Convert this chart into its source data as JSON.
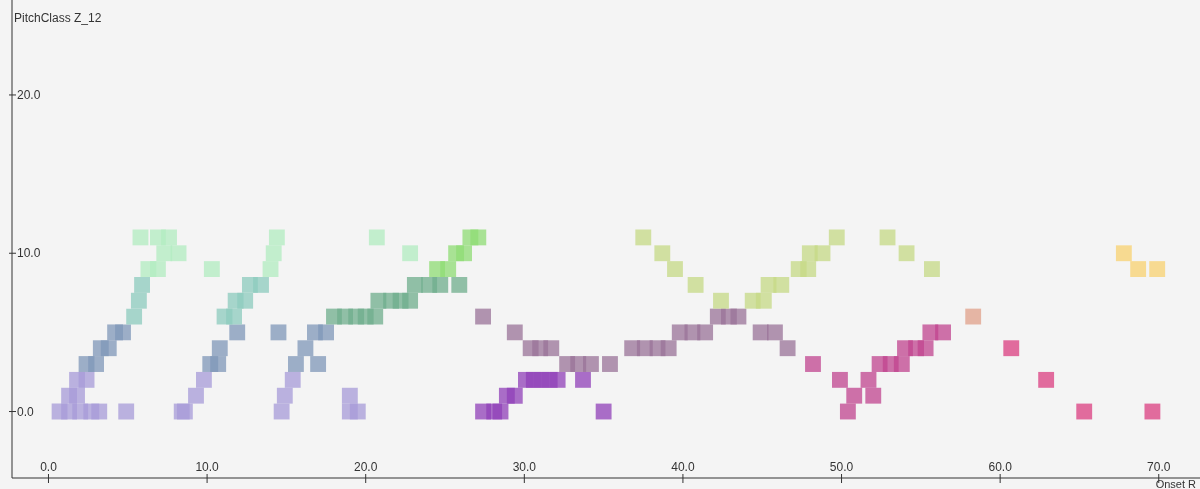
{
  "chart_data": {
    "type": "scatter",
    "xlabel": "Onset R",
    "ylabel": "PitchClass Z_12",
    "marker": "square",
    "grid": false,
    "xlim": [
      -2.3,
      72.6
    ],
    "ylim": [
      -4.2,
      26
    ],
    "xticks": [
      {
        "value": 0,
        "label": "0.0"
      },
      {
        "value": 10,
        "label": "10.0"
      },
      {
        "value": 20,
        "label": "20.0"
      },
      {
        "value": 30,
        "label": "30.0"
      },
      {
        "value": 40,
        "label": "40.0"
      },
      {
        "value": 50,
        "label": "50.0"
      },
      {
        "value": 60,
        "label": "60.0"
      },
      {
        "value": 70,
        "label": "70.0"
      }
    ],
    "yticks": [
      {
        "value": 0,
        "label": "0.0"
      },
      {
        "value": 10,
        "label": "10.0"
      },
      {
        "value": 20,
        "label": "20.0"
      }
    ],
    "series": [
      {
        "color": "#a79bd8",
        "x": [
          0.7,
          1.3,
          2.0,
          2.7,
          3.2,
          4.9,
          8.4,
          8.6,
          14.7,
          19.0,
          19.5,
          1.3,
          1.8,
          9.3,
          14.9,
          19.0,
          1.8,
          2.4,
          9.8,
          15.4
        ],
        "values": [
          0,
          0,
          0,
          0,
          0,
          0,
          0,
          0,
          0,
          0,
          0,
          1,
          1,
          1,
          1,
          1,
          2,
          2,
          2,
          2
        ]
      },
      {
        "color": "#7f97b8",
        "x": [
          2.4,
          3.0,
          10.2,
          10.7,
          15.6,
          17.0,
          3.3,
          3.8,
          10.8,
          16.2,
          4.2,
          4.7,
          11.9,
          14.5,
          16.8,
          17.5
        ],
        "values": [
          3,
          3,
          3,
          3,
          3,
          3,
          4,
          4,
          4,
          4,
          5,
          5,
          5,
          5,
          5,
          5
        ]
      },
      {
        "color": "#8ccbbd",
        "x": [
          5.4,
          11.1,
          11.7,
          5.7,
          11.8,
          12.4,
          5.9,
          12.7,
          13.4
        ],
        "values": [
          6,
          6,
          6,
          7,
          7,
          7,
          8,
          8,
          8
        ]
      },
      {
        "color": "#b2ecc0",
        "x": [
          6.3,
          6.9,
          10.3,
          14.0,
          7.3,
          8.2,
          14.2,
          22.8,
          5.8,
          6.9,
          7.6,
          14.4,
          20.7
        ],
        "values": [
          9,
          9,
          9,
          9,
          10,
          10,
          10,
          10,
          11,
          11,
          11,
          11,
          11
        ]
      },
      {
        "color": "#6fae8c",
        "x": [
          18.0,
          18.7,
          19.4,
          20.0,
          20.6,
          20.8,
          21.6,
          22.2,
          22.8,
          23.1,
          24.0,
          24.7,
          25.9
        ],
        "values": [
          6,
          6,
          6,
          6,
          6,
          7,
          7,
          7,
          7,
          8,
          8,
          8,
          8
        ]
      },
      {
        "color": "#8fdc74",
        "x": [
          24.5,
          25.2,
          25.7,
          26.2,
          26.6,
          27.1
        ],
        "values": [
          9,
          9,
          10,
          10,
          11,
          11
        ]
      },
      {
        "color": "#9040b8",
        "x": [
          27.4,
          28.1,
          28.5,
          35.0,
          28.9,
          29.4,
          30.1,
          30.6,
          31.1,
          31.6,
          32.1,
          33.7
        ],
        "values": [
          0,
          0,
          0,
          0,
          1,
          1,
          2,
          2,
          2,
          2,
          2,
          2
        ]
      },
      {
        "color": "#9a7398",
        "x": [
          32.7,
          33.4,
          34.2,
          35.4,
          30.4,
          31.0,
          31.7,
          36.8,
          37.6,
          38.4,
          39.1,
          46.6,
          29.4,
          39.8,
          40.6,
          41.4,
          44.9,
          45.8,
          27.4,
          42.2,
          42.9,
          43.5
        ],
        "values": [
          3,
          3,
          3,
          3,
          4,
          4,
          4,
          4,
          4,
          4,
          4,
          4,
          5,
          5,
          5,
          5,
          5,
          5,
          6,
          6,
          6,
          6
        ]
      },
      {
        "color": "#c6da86",
        "x": [
          42.4,
          44.4,
          45.1,
          40.8,
          45.4,
          46.2,
          39.5,
          47.3,
          47.9,
          55.7,
          38.7,
          48.0,
          48.8,
          54.1,
          37.5,
          49.7,
          52.9
        ],
        "values": [
          7,
          7,
          7,
          8,
          8,
          8,
          9,
          9,
          9,
          9,
          10,
          10,
          10,
          10,
          11,
          11,
          11
        ]
      },
      {
        "color": "#c0448f",
        "x": [
          50.4,
          50.8,
          52.0,
          49.9,
          51.7,
          48.2,
          52.4,
          53.1,
          53.8,
          54.0,
          54.7,
          55.3,
          55.6,
          56.4
        ],
        "values": [
          0,
          1,
          1,
          2,
          2,
          3,
          3,
          3,
          3,
          4,
          4,
          4,
          5,
          5
        ]
      },
      {
        "color": "#db3d80",
        "x": [
          65.3,
          69.6,
          62.9,
          60.7
        ],
        "values": [
          0,
          0,
          2,
          4
        ]
      },
      {
        "color": "#e0a08a",
        "x": [
          58.3
        ],
        "values": [
          6
        ]
      },
      {
        "color": "#f8d270",
        "x": [
          67.8,
          68.7,
          69.9
        ],
        "values": [
          10,
          9,
          9
        ]
      }
    ]
  }
}
